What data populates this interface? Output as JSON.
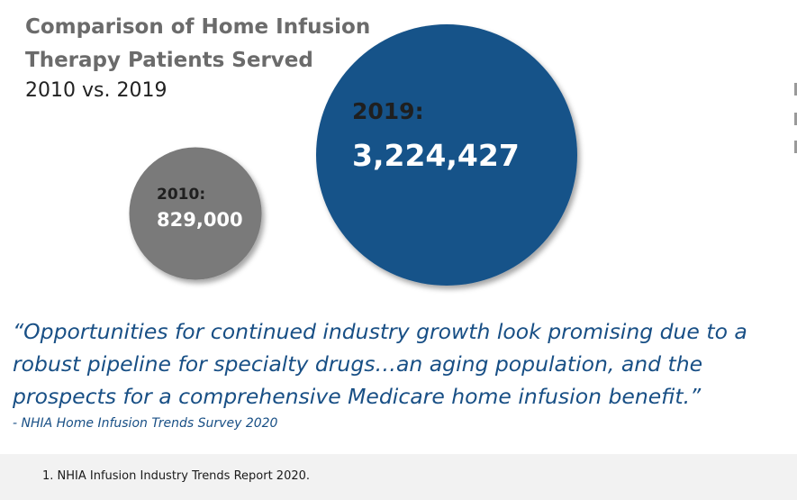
{
  "chart_data": {
    "type": "bubble",
    "title": "Comparison of Home Infusion Therapy Patients Served",
    "subtitle": "2010 vs. 2019",
    "categories": [
      "2010",
      "2019"
    ],
    "values": [
      829000,
      3224427
    ],
    "labels": [
      "2010:",
      "2019:"
    ],
    "value_labels": [
      "829,000",
      "3,224,427"
    ],
    "colors": [
      "#7a7a7a",
      "#195389"
    ]
  },
  "quote": {
    "text": "“Opportunities for continued industry growth look promising due to a robust pipeline for specialty drugs…an aging population, and the prospects for a comprehensive Medicare home infusion benefit.”",
    "attribution": "- NHIA Home Infusion Trends Survey 2020"
  },
  "footer": {
    "footnote": "1.  NHIA Infusion Industry Trends Report 2020."
  }
}
